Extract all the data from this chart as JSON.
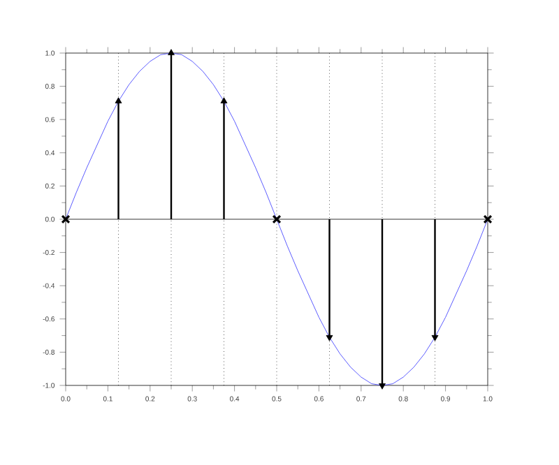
{
  "chart_data": {
    "type": "line",
    "series": [
      {
        "color": "#3333ff",
        "x": [
          0,
          0.025,
          0.05,
          0.075,
          0.1,
          0.125,
          0.15,
          0.175,
          0.2,
          0.225,
          0.25,
          0.275,
          0.3,
          0.325,
          0.35,
          0.375,
          0.4,
          0.425,
          0.45,
          0.475,
          0.5,
          0.525,
          0.55,
          0.575,
          0.6,
          0.625,
          0.65,
          0.675,
          0.7,
          0.725,
          0.75,
          0.775,
          0.8,
          0.825,
          0.85,
          0.875,
          0.9,
          0.925,
          0.95,
          0.975,
          1
        ],
        "values": [
          0,
          0.16,
          0.31,
          0.45,
          0.59,
          0.71,
          0.81,
          0.89,
          0.95,
          0.99,
          1,
          0.99,
          0.95,
          0.89,
          0.81,
          0.71,
          0.59,
          0.45,
          0.31,
          0.16,
          0,
          -0.16,
          -0.31,
          -0.45,
          -0.59,
          -0.71,
          -0.81,
          -0.89,
          -0.95,
          -0.99,
          -1,
          -0.99,
          -0.95,
          -0.89,
          -0.81,
          -0.71,
          -0.59,
          -0.45,
          -0.31,
          -0.16,
          0
        ],
        "marker": "none"
      },
      {
        "type": "lollipop",
        "color": "#000000",
        "x": [
          0.125,
          0.25,
          0.375,
          0.625,
          0.75,
          0.875
        ],
        "values": [
          0.71,
          1,
          0.71,
          -0.71,
          -1,
          -0.71
        ]
      },
      {
        "type": "scatter",
        "color": "#000000",
        "x": [
          0,
          0.5,
          1
        ],
        "values": [
          0,
          0,
          0
        ],
        "marker": "cross"
      }
    ],
    "xlim": [
      0,
      1
    ],
    "ylim": [
      -1,
      1
    ],
    "xticks": [
      {
        "value": 0,
        "label": "0.0"
      },
      {
        "value": 0.1,
        "label": "0.1"
      },
      {
        "value": 0.2,
        "label": "0.2"
      },
      {
        "value": 0.3,
        "label": "0.3"
      },
      {
        "value": 0.4,
        "label": "0.4"
      },
      {
        "value": 0.5,
        "label": "0.5"
      },
      {
        "value": 0.6,
        "label": "0.6"
      },
      {
        "value": 0.7,
        "label": "0.7"
      },
      {
        "value": 0.8,
        "label": "0.8"
      },
      {
        "value": 0.9,
        "label": "0.9"
      },
      {
        "value": 1,
        "label": "1.0"
      }
    ],
    "yticks": [
      {
        "value": -1,
        "label": "-1.0"
      },
      {
        "value": -0.8,
        "label": "-0.8"
      },
      {
        "value": -0.6,
        "label": "-0.6"
      },
      {
        "value": -0.4,
        "label": "-0.4"
      },
      {
        "value": -0.2,
        "label": "-0.2"
      },
      {
        "value": 0,
        "label": "0.0"
      },
      {
        "value": 0.2,
        "label": "0.2"
      },
      {
        "value": 0.4,
        "label": "0.4"
      },
      {
        "value": 0.6,
        "label": "0.6"
      },
      {
        "value": 0.8,
        "label": "0.8"
      },
      {
        "value": 1,
        "label": "1.0"
      }
    ],
    "ref_lines": [
      {
        "axis": "y",
        "value": 0,
        "color": "#000000",
        "line_style": "solid"
      },
      {
        "axis": "x",
        "value": 0.125,
        "color": "#000000",
        "line_style": "dotted"
      },
      {
        "axis": "x",
        "value": 0.25,
        "color": "#000000",
        "line_style": "dotted"
      },
      {
        "axis": "x",
        "value": 0.375,
        "color": "#000000",
        "line_style": "dotted"
      },
      {
        "axis": "x",
        "value": 0.5,
        "color": "#000000",
        "line_style": "dotted"
      },
      {
        "axis": "x",
        "value": 0.625,
        "color": "#000000",
        "line_style": "dotted"
      },
      {
        "axis": "x",
        "value": 0.75,
        "color": "#000000",
        "line_style": "dotted"
      },
      {
        "axis": "x",
        "value": 0.875,
        "color": "#000000",
        "line_style": "dotted"
      }
    ],
    "grid": false
  }
}
